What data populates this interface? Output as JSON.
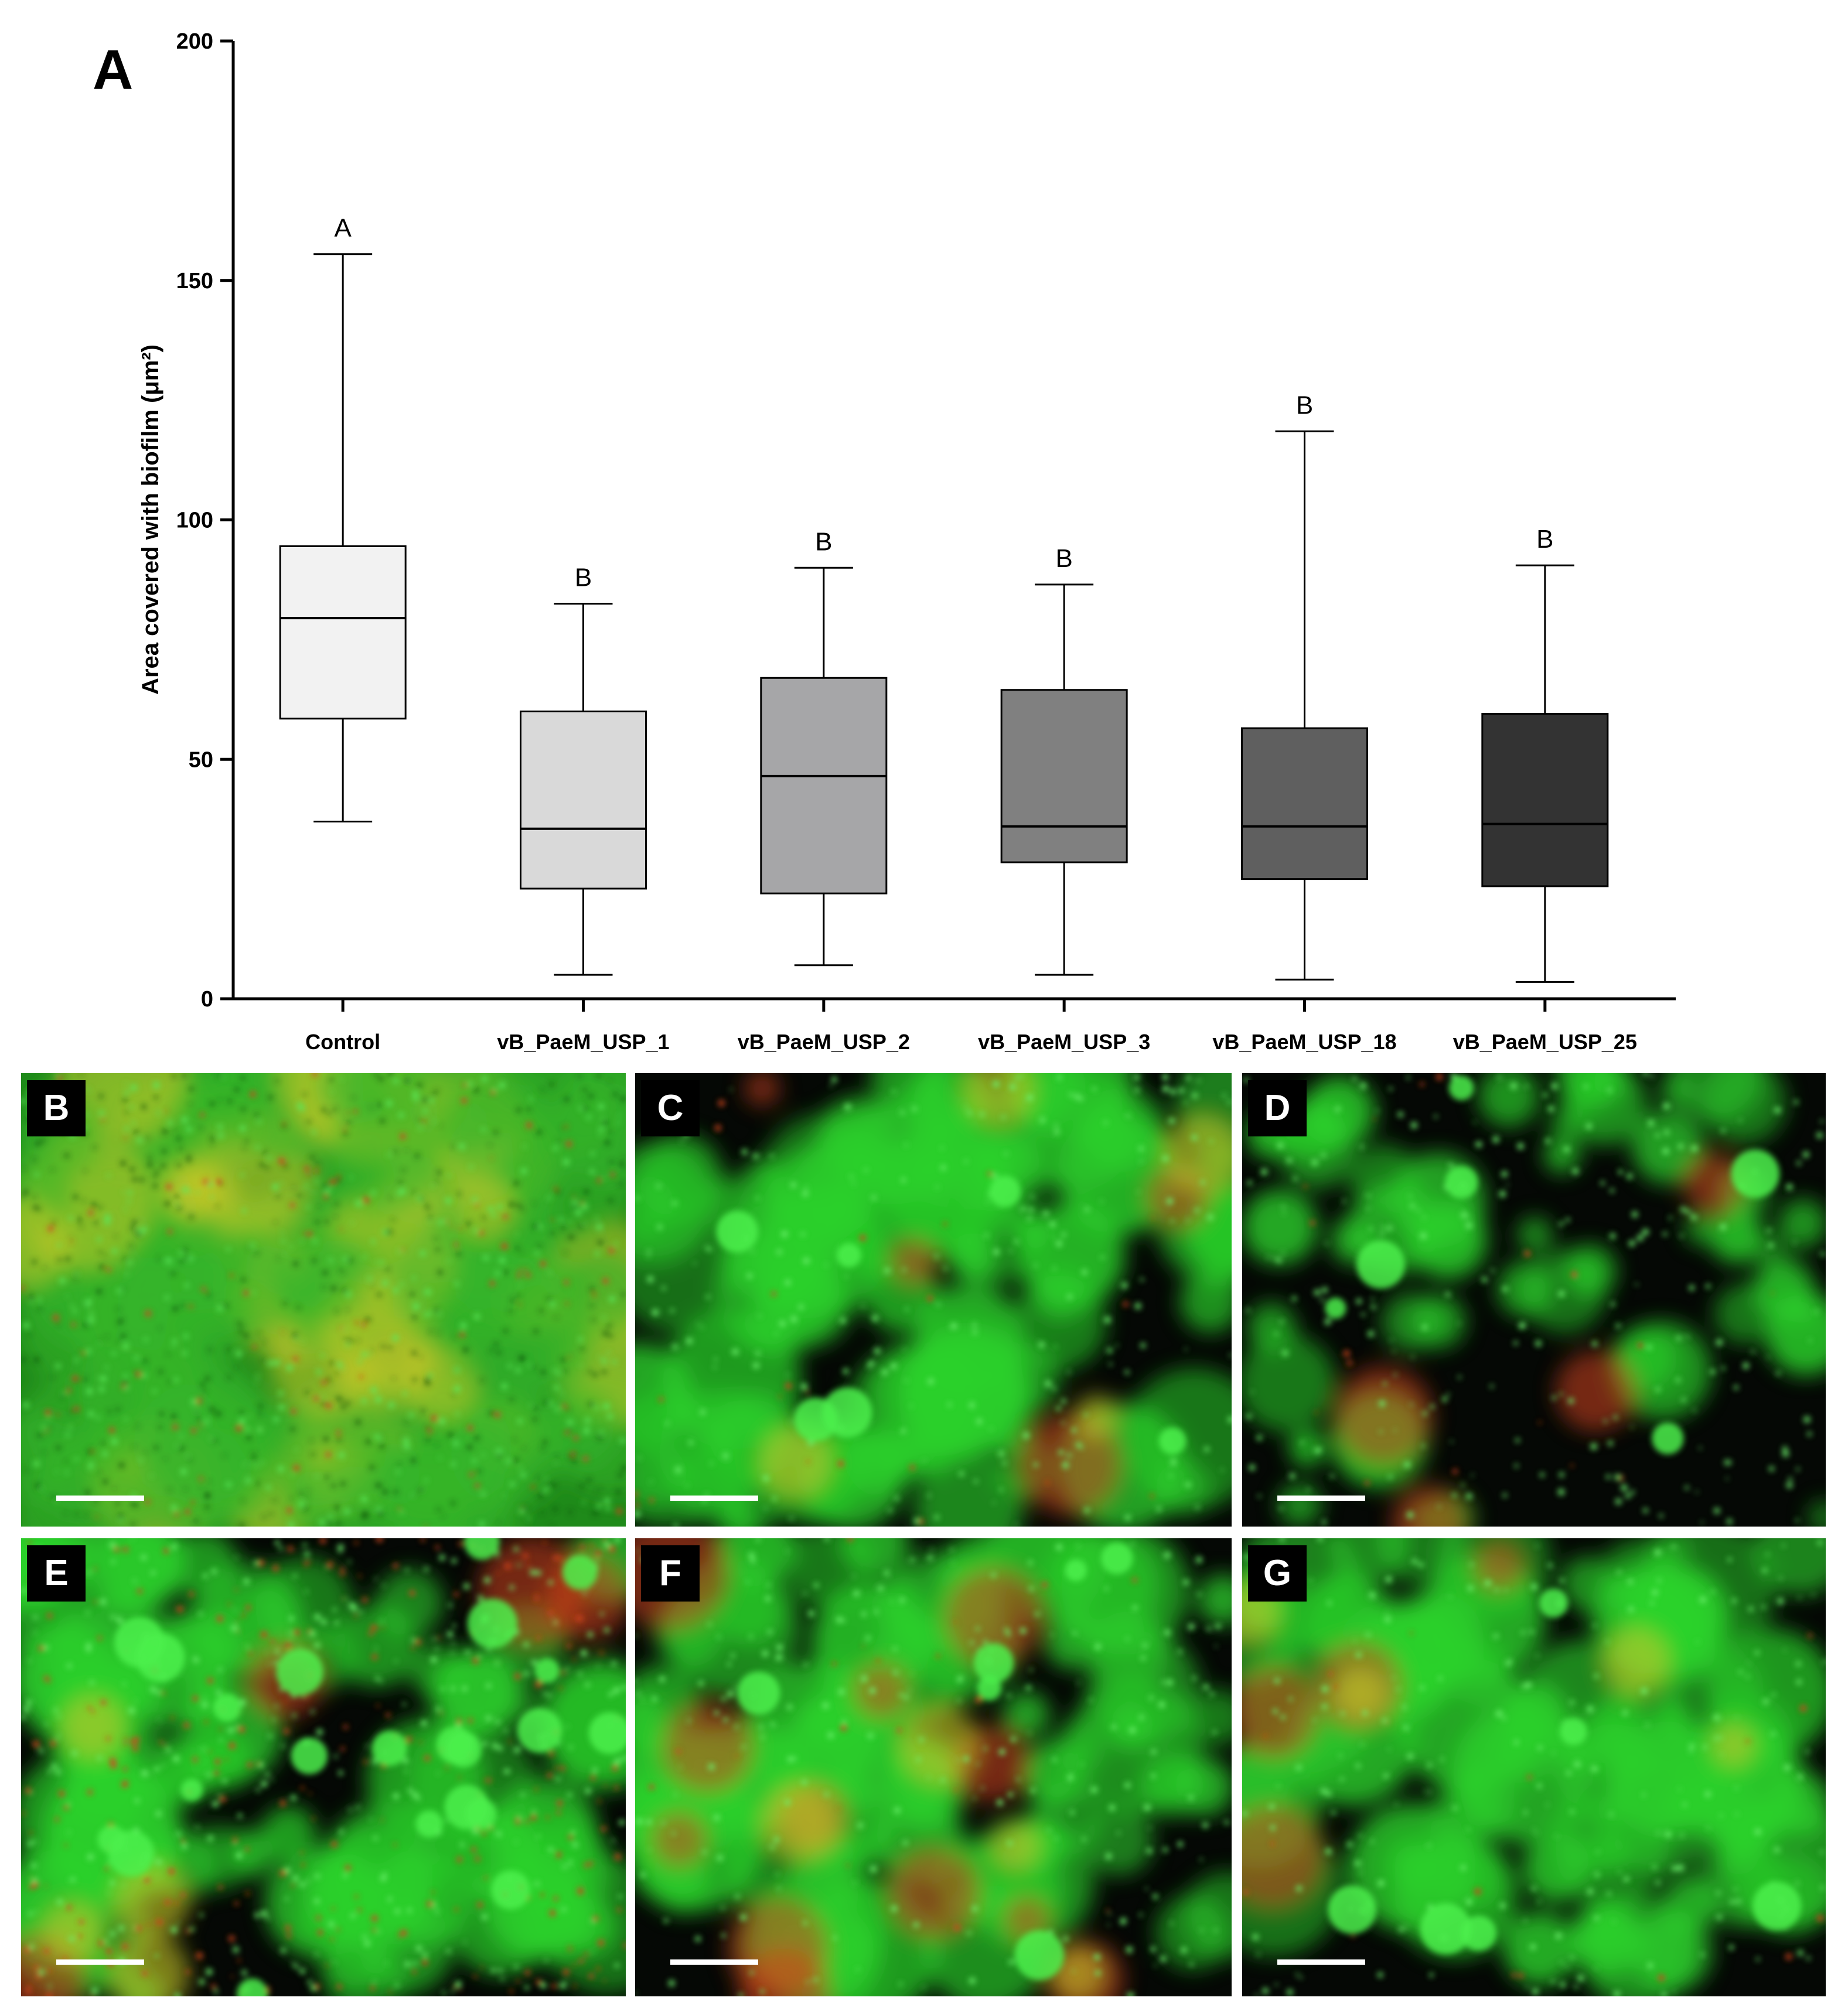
{
  "chart_data": {
    "type": "box",
    "panel_label": "A",
    "ylabel": "Area covered with biofilm (μm²)",
    "ylim": [
      0,
      200
    ],
    "yticks": [
      0,
      50,
      100,
      150,
      200
    ],
    "categories": [
      "Control",
      "vB_PaeM_USP_1",
      "vB_PaeM_USP_2",
      "vB_PaeM_USP_3",
      "vB_PaeM_USP_18",
      "vB_PaeM_USP_25"
    ],
    "boxes": [
      {
        "category": "Control",
        "min": 37,
        "q1": 58.5,
        "median": 79.5,
        "q3": 94.5,
        "max": 155.5,
        "group": "A",
        "fill": "#f2f2f2"
      },
      {
        "category": "vB_PaeM_USP_1",
        "min": 5,
        "q1": 23,
        "median": 35.5,
        "q3": 60,
        "max": 82.5,
        "group": "B",
        "fill": "#d9d9d9"
      },
      {
        "category": "vB_PaeM_USP_2",
        "min": 7,
        "q1": 22,
        "median": 46.5,
        "q3": 67,
        "max": 90,
        "group": "B",
        "fill": "#a6a6a8"
      },
      {
        "category": "vB_PaeM_USP_3",
        "min": 5,
        "q1": 28.5,
        "median": 36,
        "q3": 64.5,
        "max": 86.5,
        "group": "B",
        "fill": "#808080"
      },
      {
        "category": "vB_PaeM_USP_18",
        "min": 4,
        "q1": 25,
        "median": 36,
        "q3": 56.5,
        "max": 118.5,
        "group": "B",
        "fill": "#5f5f5f"
      },
      {
        "category": "vB_PaeM_USP_25",
        "min": 3.5,
        "q1": 23.5,
        "median": 36.5,
        "q3": 59.5,
        "max": 90.5,
        "group": "B",
        "fill": "#333333"
      }
    ]
  },
  "micrographs": [
    {
      "label": "B",
      "style": "dense"
    },
    {
      "label": "C",
      "style": "clumps"
    },
    {
      "label": "D",
      "style": "sparse"
    },
    {
      "label": "E",
      "style": "speckled"
    },
    {
      "label": "F",
      "style": "clumps-red"
    },
    {
      "label": "G",
      "style": "clumps"
    }
  ],
  "colors": {
    "green": "#2bd12b",
    "red": "#d2451e",
    "yellow": "#c9c62a",
    "background": "#050805"
  }
}
